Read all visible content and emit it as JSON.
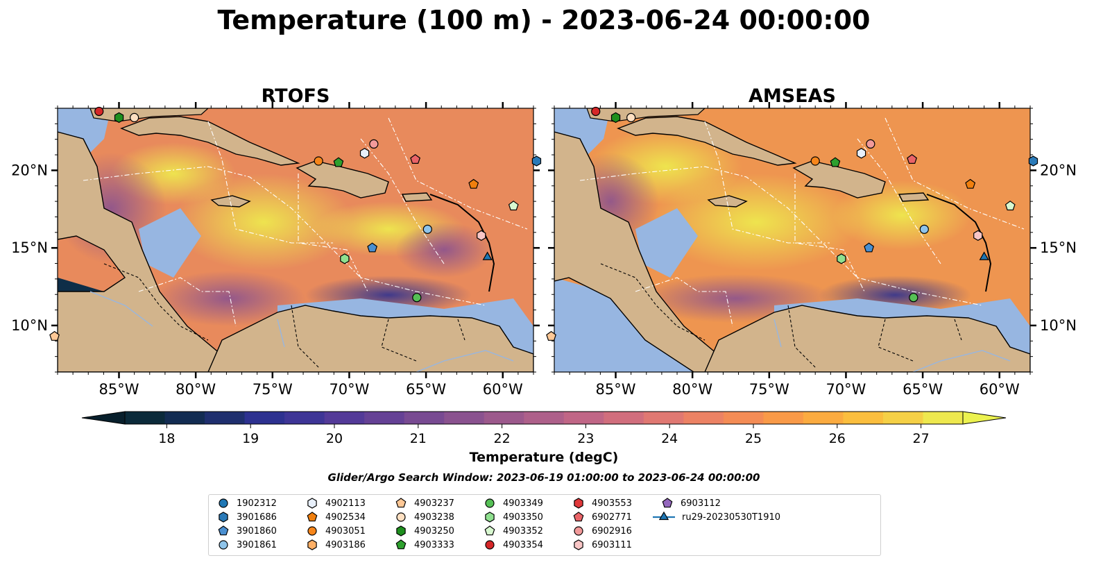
{
  "figure": {
    "title": "Temperature (100 m) - 2023-06-24 00:00:00",
    "search_window": "Glider/Argo Search Window: 2023-06-19 01:00:00 to 2023-06-24 00:00:00"
  },
  "panels": [
    {
      "title": "RTOFS"
    },
    {
      "title": "AMSEAS"
    }
  ],
  "axes": {
    "lon_ticks": [
      "85°W",
      "80°W",
      "75°W",
      "70°W",
      "65°W",
      "60°W"
    ],
    "lat_ticks": [
      "20°N",
      "15°N",
      "10°N"
    ],
    "lon_range": [
      -89,
      -58
    ],
    "lat_range": [
      7,
      24
    ]
  },
  "colorbar": {
    "label": "Temperature (degC)",
    "ticks": [
      "18",
      "19",
      "20",
      "21",
      "22",
      "23",
      "24",
      "25",
      "26",
      "27"
    ],
    "range": [
      17.5,
      27.5
    ],
    "colors": [
      "#0b2a3a",
      "#132c52",
      "#1f2f6e",
      "#2d3190",
      "#3e3596",
      "#533a98",
      "#654195",
      "#784a92",
      "#8a528f",
      "#9c598c",
      "#ae608a",
      "#c06686",
      "#d16e7d",
      "#e07872",
      "#ec8264",
      "#f48c55",
      "#f99a48",
      "#fbab40",
      "#fbbe3e",
      "#f5d046",
      "#eee84e"
    ],
    "extend_low_color": "#081f2c",
    "extend_high_color": "#ecf24f"
  },
  "colors": {
    "land": "#d2b48c",
    "shallow_water": "#97b6e1",
    "ocean_warm": "#f39a47",
    "ocean_hot": "#eee84e",
    "ocean_cool": "#6d4a94"
  },
  "legend": {
    "items": [
      {
        "label": "1902312",
        "marker": "circle",
        "color": "#1f77b4"
      },
      {
        "label": "3901686",
        "marker": "hexagon",
        "color": "#2a7ab8"
      },
      {
        "label": "3901860",
        "marker": "pentagon",
        "color": "#4a8fd0"
      },
      {
        "label": "3901861",
        "marker": "circle",
        "color": "#8fc4ea"
      },
      {
        "label": "4902113",
        "marker": "hexagon",
        "color": "#e8f0fb"
      },
      {
        "label": "4902534",
        "marker": "pentagon",
        "color": "#f07f0e"
      },
      {
        "label": "4903051",
        "marker": "circle",
        "color": "#f7861b"
      },
      {
        "label": "4903186",
        "marker": "hexagon",
        "color": "#ffb066"
      },
      {
        "label": "4903237",
        "marker": "pentagon",
        "color": "#ffc896"
      },
      {
        "label": "4903238",
        "marker": "circle",
        "color": "#ffe0c2"
      },
      {
        "label": "4903250",
        "marker": "hexagon",
        "color": "#1e8f1e"
      },
      {
        "label": "4903333",
        "marker": "pentagon",
        "color": "#2ea02e"
      },
      {
        "label": "4903349",
        "marker": "circle",
        "color": "#56c056"
      },
      {
        "label": "4903350",
        "marker": "hexagon",
        "color": "#8fe08f"
      },
      {
        "label": "4903352",
        "marker": "pentagon",
        "color": "#d8f8d0"
      },
      {
        "label": "4903354",
        "marker": "circle",
        "color": "#d62728"
      },
      {
        "label": "4903553",
        "marker": "hexagon",
        "color": "#e0383a"
      },
      {
        "label": "6902771",
        "marker": "pentagon",
        "color": "#ea6468"
      },
      {
        "label": "6902916",
        "marker": "circle",
        "color": "#f29a9a"
      },
      {
        "label": "6903111",
        "marker": "hexagon",
        "color": "#f8c6c6"
      },
      {
        "label": "6903112",
        "marker": "pentagon",
        "color": "#9467bd"
      },
      {
        "label": "ru29-20230530T1910",
        "marker": "triangle-line",
        "color": "#1f77b4"
      }
    ]
  },
  "platforms": [
    {
      "id": "4903354",
      "lon": -86.3,
      "lat": 23.8
    },
    {
      "id": "4903250",
      "lon": -85.0,
      "lat": 23.4
    },
    {
      "id": "4903238",
      "lon": -84.0,
      "lat": 23.4
    },
    {
      "id": "3901686",
      "lon": -57.8,
      "lat": 20.6
    },
    {
      "id": "4903051",
      "lon": -72.0,
      "lat": 20.6
    },
    {
      "id": "4903333",
      "lon": -70.7,
      "lat": 20.5
    },
    {
      "id": "4902113",
      "lon": -69.0,
      "lat": 21.1
    },
    {
      "id": "6902916",
      "lon": -68.4,
      "lat": 21.7
    },
    {
      "id": "6902771",
      "lon": -65.7,
      "lat": 20.7
    },
    {
      "id": "4902534",
      "lon": -61.9,
      "lat": 19.1
    },
    {
      "id": "4903352",
      "lon": -59.3,
      "lat": 17.7
    },
    {
      "id": "3901861",
      "lon": -64.9,
      "lat": 16.2
    },
    {
      "id": "6903111",
      "lon": -61.4,
      "lat": 15.8
    },
    {
      "id": "3901860",
      "lon": -68.5,
      "lat": 15.0
    },
    {
      "id": "4903350",
      "lon": -70.3,
      "lat": 14.3
    },
    {
      "id": "4903349",
      "lon": -65.6,
      "lat": 11.8
    },
    {
      "id": "ru29-20230530T1910",
      "lon": -61.0,
      "lat": 14.4
    },
    {
      "id": "4903237",
      "lon": -89.2,
      "lat": 9.3
    }
  ]
}
